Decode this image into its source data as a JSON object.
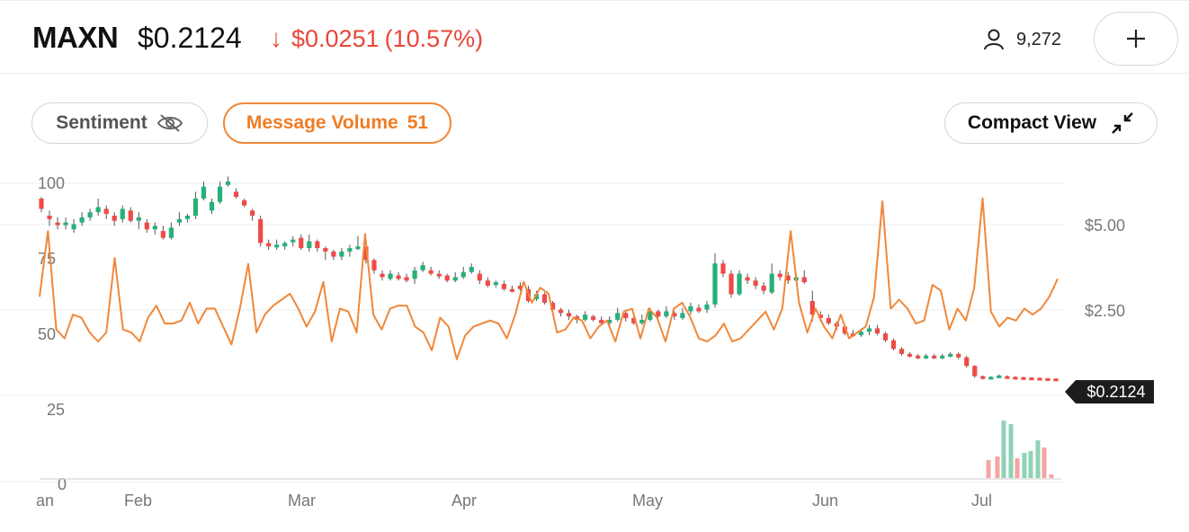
{
  "header": {
    "symbol": "MAXN",
    "price": "$0.2124",
    "change_amount": "$0.0251",
    "change_percent": "(10.57%)",
    "change_arrow": "down-arrow-icon",
    "watchers_icon": "user-icon",
    "watchers": "9,272",
    "add_icon": "plus-icon",
    "colors": {
      "down": "#e8473a",
      "accent": "#ef7d25"
    }
  },
  "controls": {
    "sentiment_label": "Sentiment",
    "sentiment_icon": "eye-off-icon",
    "volume_label": "Message Volume",
    "volume_count": "51",
    "compact_label": "Compact View",
    "compact_icon": "collapse-arrows-icon"
  },
  "chart_data": {
    "type": "candlestick",
    "x_labels": [
      "an",
      "Feb",
      "Mar",
      "Apr",
      "May",
      "Jun",
      "Jul"
    ],
    "left_axis": {
      "ticks": [
        "100",
        "75",
        "50",
        "25",
        "0"
      ],
      "range": [
        0,
        100
      ]
    },
    "right_axis": {
      "ticks": [
        "$5.00",
        "$2.50"
      ],
      "range": [
        0,
        7.5
      ]
    },
    "last_price_tag": "$0.2124",
    "colors": {
      "up": "#26b07a",
      "down": "#ef4a47",
      "message_line": "#f0883a",
      "volume_up": "#8fd2b5",
      "volume_down": "#f3a4a2"
    },
    "candles": [
      [
        5.5,
        5.2,
        5.55,
        5.1
      ],
      [
        5.0,
        4.9,
        5.15,
        4.7
      ],
      [
        4.8,
        4.75,
        4.95,
        4.6
      ],
      [
        4.75,
        4.8,
        4.95,
        4.6
      ],
      [
        4.6,
        4.75,
        4.9,
        4.5
      ],
      [
        4.8,
        4.95,
        5.1,
        4.7
      ],
      [
        4.95,
        5.1,
        5.2,
        4.85
      ],
      [
        5.1,
        5.25,
        5.5,
        5.0
      ],
      [
        5.2,
        5.05,
        5.3,
        4.9
      ],
      [
        5.0,
        4.85,
        5.1,
        4.7
      ],
      [
        4.9,
        5.2,
        5.3,
        4.8
      ],
      [
        5.15,
        4.85,
        5.25,
        4.8
      ],
      [
        4.85,
        4.95,
        5.1,
        4.6
      ],
      [
        4.8,
        4.6,
        4.9,
        4.5
      ],
      [
        4.6,
        4.7,
        4.8,
        4.45
      ],
      [
        4.55,
        4.35,
        4.7,
        4.3
      ],
      [
        4.35,
        4.65,
        4.8,
        4.3
      ],
      [
        4.8,
        4.9,
        5.1,
        4.7
      ],
      [
        4.9,
        5.0,
        5.05,
        4.8
      ],
      [
        5.0,
        5.5,
        5.7,
        4.9
      ],
      [
        5.5,
        5.85,
        6.0,
        5.45
      ],
      [
        5.15,
        5.4,
        5.5,
        5.05
      ],
      [
        5.4,
        5.85,
        6.0,
        5.35
      ],
      [
        5.9,
        6.0,
        6.15,
        5.85
      ],
      [
        5.7,
        5.55,
        5.8,
        5.5
      ],
      [
        5.45,
        5.3,
        5.5,
        5.25
      ],
      [
        5.15,
        5.0,
        5.2,
        4.85
      ],
      [
        4.9,
        4.2,
        5.0,
        4.1
      ],
      [
        4.2,
        4.1,
        4.3,
        4.0
      ],
      [
        4.1,
        4.15,
        4.3,
        4.0
      ],
      [
        4.1,
        4.2,
        4.25,
        4.0
      ],
      [
        4.25,
        4.3,
        4.4,
        4.1
      ],
      [
        4.35,
        4.05,
        4.45,
        4.0
      ],
      [
        4.05,
        4.25,
        4.45,
        3.95
      ],
      [
        4.25,
        4.05,
        4.3,
        3.95
      ],
      [
        4.05,
        3.95,
        4.1,
        3.7
      ],
      [
        3.95,
        3.8,
        4.0,
        3.7
      ],
      [
        3.8,
        3.95,
        4.05,
        3.7
      ],
      [
        3.95,
        4.05,
        4.15,
        3.8
      ],
      [
        4.05,
        4.1,
        4.4,
        4.0
      ],
      [
        4.1,
        3.7,
        4.2,
        3.6
      ],
      [
        3.7,
        3.4,
        3.75,
        3.3
      ],
      [
        3.3,
        3.2,
        3.4,
        3.1
      ],
      [
        3.15,
        3.3,
        3.4,
        3.1
      ],
      [
        3.25,
        3.15,
        3.35,
        3.1
      ],
      [
        3.2,
        3.1,
        3.3,
        3.05
      ],
      [
        3.15,
        3.4,
        3.5,
        3.0
      ],
      [
        3.4,
        3.55,
        3.65,
        3.35
      ],
      [
        3.4,
        3.3,
        3.5,
        3.25
      ],
      [
        3.3,
        3.25,
        3.4,
        3.15
      ],
      [
        3.25,
        3.1,
        3.3,
        3.05
      ],
      [
        3.1,
        3.2,
        3.35,
        3.05
      ],
      [
        3.2,
        3.35,
        3.5,
        3.15
      ],
      [
        3.35,
        3.5,
        3.6,
        3.3
      ],
      [
        3.3,
        3.1,
        3.4,
        3.0
      ],
      [
        3.1,
        2.95,
        3.2,
        2.9
      ],
      [
        3.0,
        3.05,
        3.1,
        2.9
      ],
      [
        3.0,
        2.85,
        3.1,
        2.8
      ],
      [
        2.85,
        2.8,
        2.95,
        2.75
      ],
      [
        2.95,
        2.85,
        3.05,
        2.8
      ],
      [
        2.85,
        2.5,
        2.95,
        2.45
      ],
      [
        2.55,
        2.7,
        2.8,
        2.5
      ],
      [
        2.7,
        2.45,
        2.75,
        2.4
      ],
      [
        2.45,
        2.25,
        2.5,
        2.2
      ],
      [
        2.25,
        2.15,
        2.3,
        2.05
      ],
      [
        2.15,
        2.05,
        2.25,
        1.95
      ],
      [
        2.05,
        1.95,
        2.1,
        1.85
      ],
      [
        1.95,
        2.1,
        2.2,
        1.9
      ],
      [
        2.05,
        1.95,
        2.1,
        1.9
      ],
      [
        1.95,
        1.85,
        2.05,
        1.8
      ],
      [
        1.85,
        1.95,
        2.05,
        1.8
      ],
      [
        1.95,
        2.15,
        2.3,
        1.9
      ],
      [
        2.15,
        2.0,
        2.25,
        1.9
      ],
      [
        2.0,
        1.85,
        2.1,
        1.8
      ],
      [
        1.85,
        1.95,
        2.1,
        1.8
      ],
      [
        1.95,
        2.2,
        2.3,
        1.9
      ],
      [
        2.2,
        2.05,
        2.25,
        2.0
      ],
      [
        2.05,
        2.2,
        2.35,
        2.0
      ],
      [
        2.15,
        2.05,
        2.2,
        1.95
      ],
      [
        2.0,
        2.15,
        2.3,
        1.95
      ],
      [
        2.2,
        2.35,
        2.45,
        2.1
      ],
      [
        2.3,
        2.2,
        2.4,
        2.15
      ],
      [
        2.25,
        2.4,
        2.5,
        2.15
      ],
      [
        2.4,
        3.6,
        3.9,
        2.3
      ],
      [
        3.6,
        3.3,
        3.7,
        3.2
      ],
      [
        3.3,
        2.7,
        3.4,
        2.6
      ],
      [
        2.7,
        3.3,
        3.4,
        2.65
      ],
      [
        3.2,
        3.1,
        3.3,
        3.0
      ],
      [
        3.1,
        2.95,
        3.2,
        2.85
      ],
      [
        2.95,
        2.8,
        3.05,
        2.7
      ],
      [
        2.75,
        3.3,
        3.6,
        2.7
      ],
      [
        3.3,
        3.2,
        3.4,
        3.1
      ],
      [
        3.25,
        3.1,
        3.35,
        3.0
      ],
      [
        3.1,
        3.2,
        3.3,
        3.05
      ],
      [
        3.2,
        3.05,
        3.4,
        3.0
      ],
      [
        2.5,
        2.1,
        2.8,
        1.9
      ],
      [
        2.1,
        2.0,
        2.2,
        1.9
      ],
      [
        2.0,
        1.85,
        2.1,
        1.8
      ],
      [
        1.85,
        1.75,
        1.9,
        1.65
      ],
      [
        1.75,
        1.55,
        1.8,
        1.5
      ],
      [
        1.55,
        1.5,
        1.65,
        1.45
      ],
      [
        1.5,
        1.6,
        1.7,
        1.45
      ],
      [
        1.6,
        1.7,
        1.8,
        1.5
      ],
      [
        1.7,
        1.55,
        1.8,
        1.5
      ],
      [
        1.55,
        1.35,
        1.6,
        1.3
      ],
      [
        1.35,
        1.1,
        1.4,
        1.05
      ],
      [
        1.1,
        0.95,
        1.15,
        0.9
      ],
      [
        0.95,
        0.9,
        1.0,
        0.85
      ],
      [
        0.9,
        0.85,
        0.95,
        0.8
      ],
      [
        0.85,
        0.9,
        0.95,
        0.8
      ],
      [
        0.9,
        0.85,
        0.95,
        0.8
      ],
      [
        0.85,
        0.9,
        0.95,
        0.8
      ],
      [
        0.9,
        0.95,
        1.0,
        0.85
      ],
      [
        0.95,
        0.85,
        1.0,
        0.8
      ],
      [
        0.85,
        0.6,
        0.9,
        0.55
      ],
      [
        0.6,
        0.3,
        0.62,
        0.25
      ],
      [
        0.3,
        0.25,
        0.32,
        0.2
      ],
      [
        0.25,
        0.28,
        0.3,
        0.22
      ],
      [
        0.28,
        0.32,
        0.35,
        0.25
      ],
      [
        0.3,
        0.28,
        0.32,
        0.26
      ],
      [
        0.28,
        0.27,
        0.3,
        0.25
      ],
      [
        0.27,
        0.26,
        0.28,
        0.24
      ],
      [
        0.26,
        0.25,
        0.27,
        0.23
      ],
      [
        0.25,
        0.24,
        0.26,
        0.22
      ],
      [
        0.24,
        0.23,
        0.25,
        0.22
      ],
      [
        0.23,
        0.22,
        0.24,
        0.21
      ]
    ],
    "message_volume": [
      62,
      84,
      51,
      48,
      56,
      55,
      50,
      47,
      50,
      75,
      51,
      50,
      47,
      55,
      59,
      53,
      53,
      54,
      60,
      53,
      58,
      58,
      52,
      46,
      58,
      73,
      50,
      56,
      59,
      61,
      63,
      58,
      52,
      57,
      67,
      47,
      58,
      57,
      50,
      83,
      56,
      51,
      58,
      59,
      59,
      52,
      50,
      44,
      55,
      52,
      41,
      49,
      52,
      53,
      54,
      53,
      48,
      56,
      67,
      60,
      65,
      63,
      50,
      51,
      55,
      54,
      48,
      52,
      54,
      47,
      57,
      58,
      48,
      58,
      55,
      47,
      58,
      60,
      55,
      48,
      47,
      49,
      53,
      47,
      48,
      51,
      54,
      57,
      51,
      58,
      84,
      60,
      50,
      58,
      52,
      48,
      56,
      48,
      50,
      52,
      62,
      94,
      58,
      61,
      58,
      53,
      54,
      66,
      64,
      51,
      58,
      54,
      65,
      95,
      57,
      52,
      55,
      54,
      58,
      56,
      58,
      62,
      68
    ],
    "volume_bars": [
      [
        1099,
        "down",
        20
      ],
      [
        1109,
        "down",
        24
      ],
      [
        1116,
        "up",
        64
      ],
      [
        1124,
        "up",
        60
      ],
      [
        1131,
        "down",
        22
      ],
      [
        1139,
        "up",
        28
      ],
      [
        1146,
        "up",
        30
      ],
      [
        1154,
        "up",
        42
      ],
      [
        1161,
        "down",
        34
      ],
      [
        1169,
        "down",
        4
      ]
    ]
  }
}
